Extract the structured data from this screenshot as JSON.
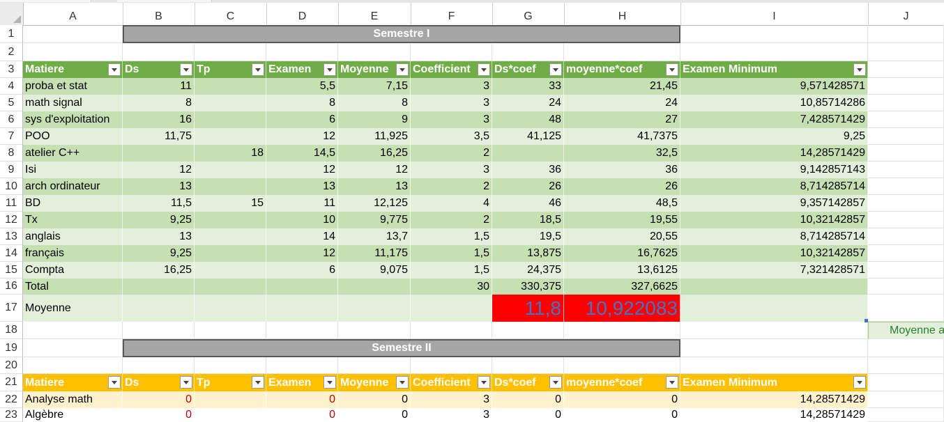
{
  "columns": [
    "A",
    "B",
    "C",
    "D",
    "E",
    "F",
    "G",
    "H",
    "I",
    "J"
  ],
  "rows": [
    "1",
    "2",
    "3",
    "4",
    "5",
    "6",
    "7",
    "8",
    "9",
    "10",
    "11",
    "12",
    "13",
    "14",
    "15",
    "16",
    "17",
    "18",
    "19",
    "20",
    "21",
    "22",
    "23"
  ],
  "semester1": {
    "title": "Semestre I",
    "headers": [
      "Matiere",
      "Ds",
      "Tp",
      "Examen",
      "Moyenne",
      "Coefficient",
      "Ds*coef",
      "moyenne*coef",
      "Examen Minimum"
    ],
    "rows": [
      [
        "proba et stat",
        "11",
        "",
        "5,5",
        "7,15",
        "3",
        "33",
        "21,45",
        "9,571428571"
      ],
      [
        "math signal",
        "8",
        "",
        "8",
        "8",
        "3",
        "24",
        "24",
        "10,85714286"
      ],
      [
        "sys d'exploitation",
        "16",
        "",
        "6",
        "9",
        "3",
        "48",
        "27",
        "7,428571429"
      ],
      [
        "POO",
        "11,75",
        "",
        "12",
        "11,925",
        "3,5",
        "41,125",
        "41,7375",
        "9,25"
      ],
      [
        "atelier C++",
        "",
        "18",
        "14,5",
        "16,25",
        "2",
        "",
        "32,5",
        "14,28571429"
      ],
      [
        "Isi",
        "12",
        "",
        "12",
        "12",
        "3",
        "36",
        "36",
        "9,142857143"
      ],
      [
        "arch ordinateur",
        "13",
        "",
        "13",
        "13",
        "2",
        "26",
        "26",
        "8,714285714"
      ],
      [
        "BD",
        "11,5",
        "15",
        "11",
        "12,125",
        "4",
        "46",
        "48,5",
        "9,357142857"
      ],
      [
        "Tx",
        "9,25",
        "",
        "10",
        "9,775",
        "2",
        "18,5",
        "19,55",
        "10,32142857"
      ],
      [
        "anglais",
        "13",
        "",
        "14",
        "13,7",
        "1,5",
        "19,5",
        "20,55",
        "8,714285714"
      ],
      [
        "français",
        "9,25",
        "",
        "12",
        "11,175",
        "1,5",
        "13,875",
        "16,7625",
        "10,32142857"
      ],
      [
        "Compta",
        "16,25",
        "",
        "6",
        "9,075",
        "1,5",
        "24,375",
        "13,6125",
        "7,321428571"
      ]
    ],
    "total": {
      "label": "Total",
      "coef": "30",
      "ds_coef": "330,375",
      "moy_coef": "327,6625"
    },
    "moyenne": {
      "label": "Moyenne",
      "ds": "11,8",
      "moy": "10,922083"
    }
  },
  "semester2": {
    "title": "Semestre II",
    "headers": [
      "Matiere",
      "Ds",
      "Tp",
      "Examen",
      "Moyenne",
      "Coefficient",
      "Ds*coef",
      "moyenne*coef",
      "Examen Minimum"
    ],
    "rows": [
      [
        "Analyse math",
        "0",
        "",
        "0",
        "0",
        "3",
        "0",
        "0",
        "14,28571429"
      ],
      [
        "Algèbre",
        "0",
        "",
        "0",
        "0",
        "3",
        "0",
        "0",
        "14,28571429"
      ]
    ]
  },
  "side_label": "Moyenne a",
  "colors": {
    "green_header": "#70ad47",
    "green_band1": "#c6e0b4",
    "green_band2": "#e2efda",
    "orange_header": "#ffc000",
    "orange_band": "#fff2cc",
    "red_fill": "#ff0000",
    "semester_bar": "#a6a6a6"
  }
}
